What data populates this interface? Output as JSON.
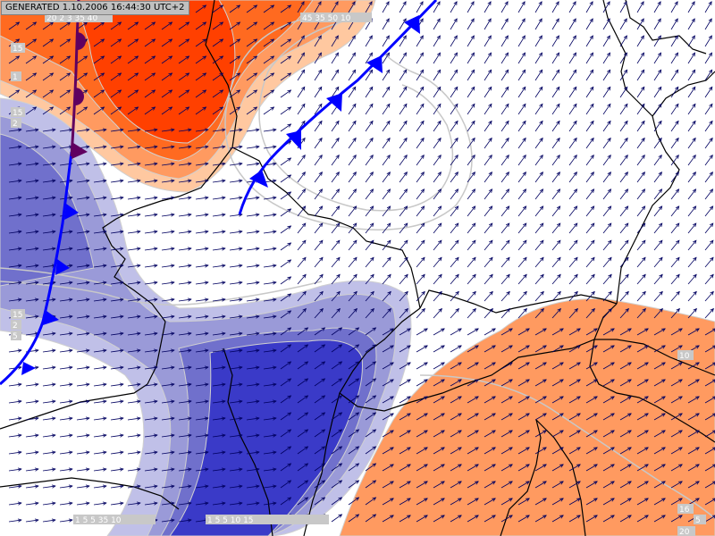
{
  "header": {
    "generated": "GENERATED 1.10.2006 16:44:30 UTC+2"
  },
  "labels": {
    "top_left": "20 2 3 35 40",
    "top_center": "45 35 50 10",
    "left_1": "15",
    "left_2": "1",
    "left_3": "15",
    "left_4": "2",
    "left_mid_1": "15",
    "left_mid_2": "2",
    "left_mid_3": "5",
    "right_1": "10",
    "right_2": "16",
    "right_3": "5",
    "bottom_1": "1 5 5 35 10",
    "bottom_2": "1 5 5 10 15",
    "bottom_right": "20"
  },
  "colors": {
    "warm_dark": "#ff4000",
    "warm_mid": "#ff6a20",
    "warm_light": "#ff9a60",
    "warm_pale": "#ffc8a0",
    "cold_dark": "#3a3ac8",
    "cold_mid": "#7070cc",
    "cold_light": "#9a9ad8",
    "cold_pale": "#c0c0e8",
    "front_cold": "#0000ff",
    "front_occluded": "#600060",
    "border": "#000000",
    "wind_arrow": "#000060",
    "contour": "#c8c8c8"
  },
  "fronts": [
    {
      "type": "cold-front"
    },
    {
      "type": "cold-front"
    },
    {
      "type": "occluded-front"
    }
  ]
}
